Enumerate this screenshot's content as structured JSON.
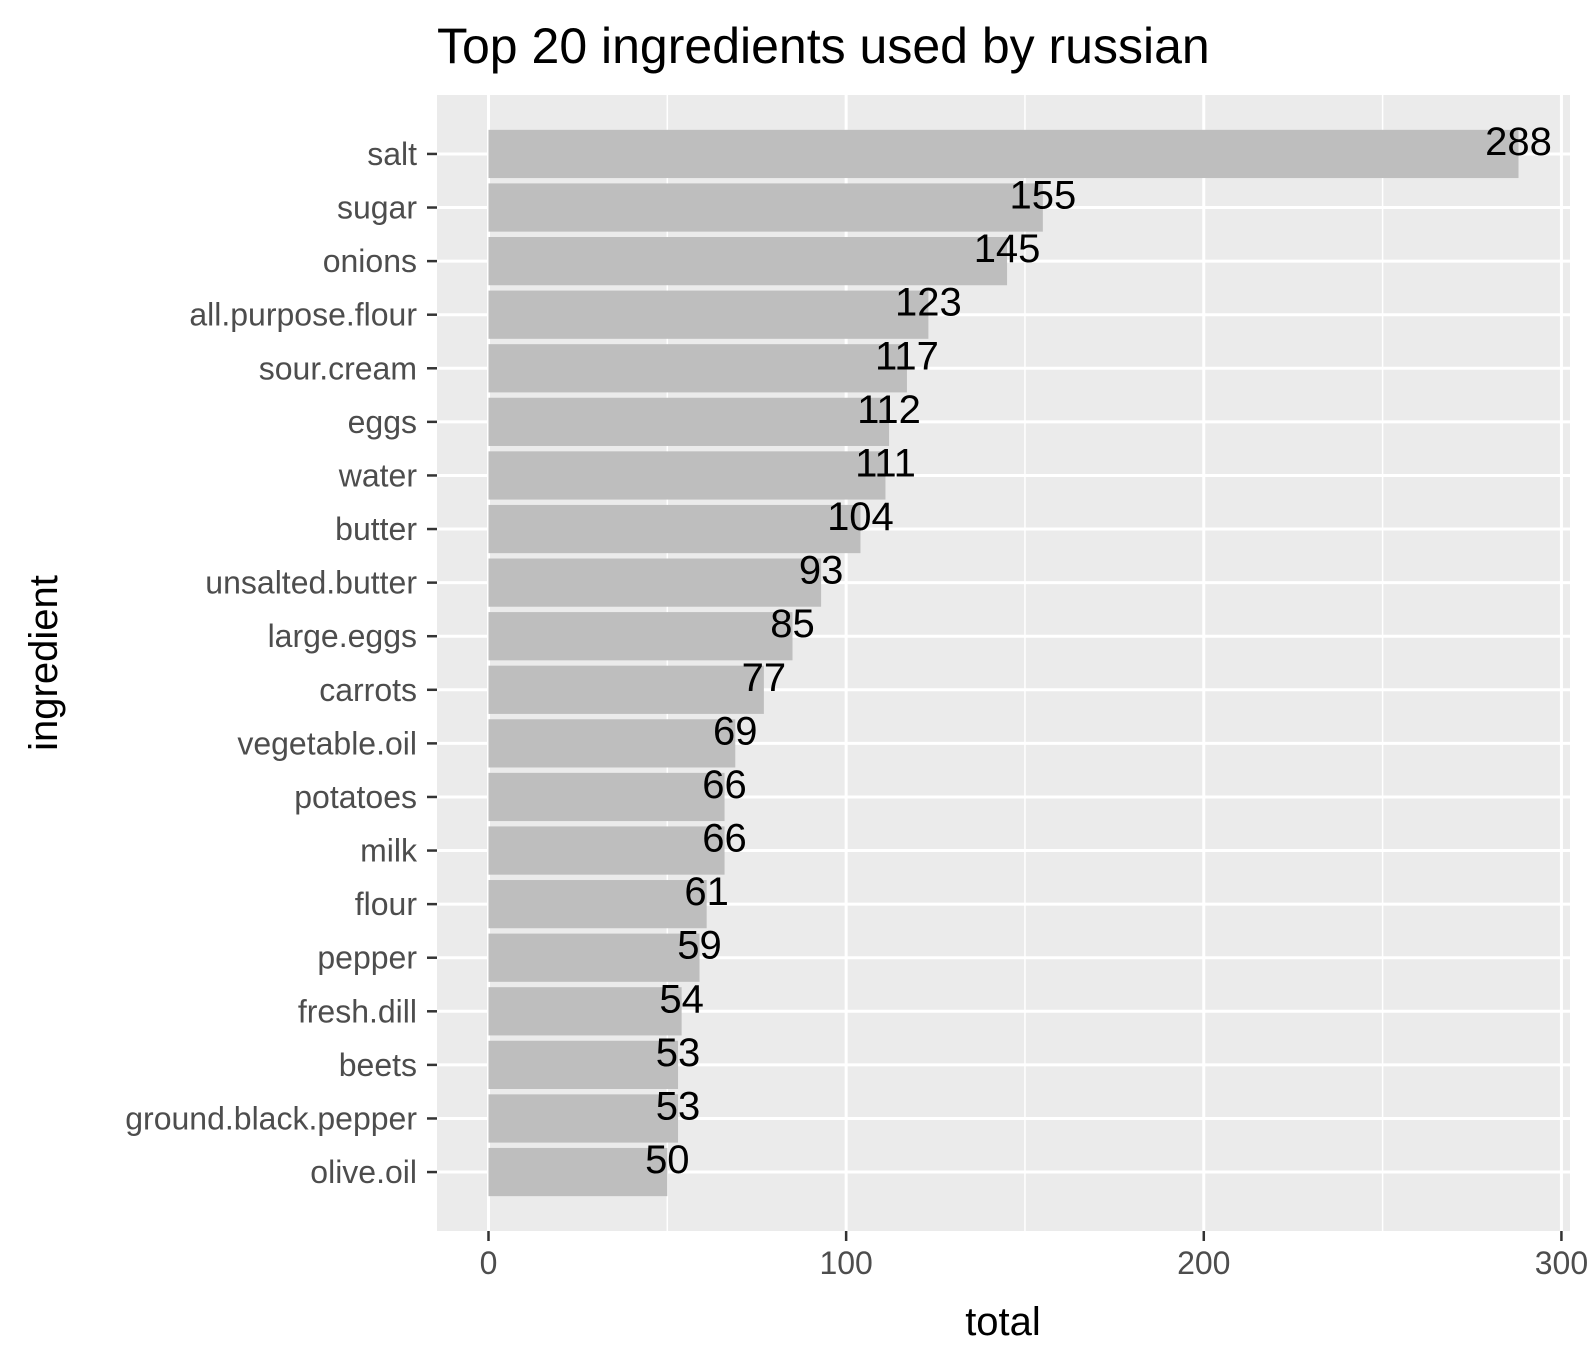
{
  "chart_data": {
    "type": "bar",
    "orientation": "horizontal",
    "title": "Top 20 ingredients used by russian",
    "xlabel": "total",
    "ylabel": "ingredient",
    "categories": [
      "salt",
      "sugar",
      "onions",
      "all.purpose.flour",
      "sour.cream",
      "eggs",
      "water",
      "butter",
      "unsalted.butter",
      "large.eggs",
      "carrots",
      "vegetable.oil",
      "potatoes",
      "milk",
      "flour",
      "pepper",
      "fresh.dill",
      "beets",
      "ground.black.pepper",
      "olive.oil"
    ],
    "values": [
      288,
      155,
      145,
      123,
      117,
      112,
      111,
      104,
      93,
      85,
      77,
      69,
      66,
      66,
      61,
      59,
      54,
      53,
      53,
      50
    ],
    "data_labels": [
      "288",
      "155",
      "145",
      "123",
      "117",
      "112",
      "111",
      "104",
      "93",
      "85",
      "77",
      "69",
      "66",
      "66",
      "61",
      "59",
      "54",
      "53",
      "53",
      "50"
    ],
    "xticks": [
      0,
      100,
      200,
      300
    ],
    "xtick_labels": [
      "0",
      "100",
      "200",
      "300"
    ],
    "xlim": [
      -14.4,
      302.4
    ],
    "grid": true,
    "legend": "none",
    "colors": {
      "bar": "#bebebe",
      "panel": "#ebebeb",
      "grid": "#ffffff",
      "tick": "#333333"
    }
  }
}
